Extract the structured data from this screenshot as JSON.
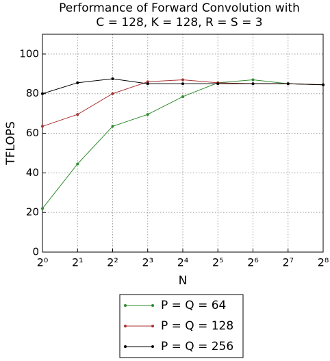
{
  "chart_data": {
    "type": "line",
    "title": [
      "Performance of Forward Convolution with",
      "C = 128, K = 128, R = S = 3"
    ],
    "x_label": "N",
    "y_label": "TFLOPS",
    "x": [
      1,
      2,
      4,
      8,
      16,
      32,
      64,
      128,
      256
    ],
    "xscale": "log2",
    "xlim": [
      1,
      256
    ],
    "xticks": [
      {
        "value": 1,
        "label": "2⁰"
      },
      {
        "value": 2,
        "label": "2¹"
      },
      {
        "value": 4,
        "label": "2²"
      },
      {
        "value": 8,
        "label": "2³"
      },
      {
        "value": 16,
        "label": "2⁴"
      },
      {
        "value": 32,
        "label": "2⁵"
      },
      {
        "value": 64,
        "label": "2⁶"
      },
      {
        "value": 128,
        "label": "2⁷"
      },
      {
        "value": 256,
        "label": "2⁸"
      }
    ],
    "ylim": [
      0,
      110
    ],
    "yticks": [
      0,
      20,
      40,
      60,
      80,
      100
    ],
    "grid": true,
    "legend": "below",
    "series": [
      {
        "name": "P = Q = 64",
        "color": "#2e8b2e",
        "values": [
          22,
          44.5,
          63.5,
          69.5,
          78.5,
          85.5,
          87,
          85,
          84.5
        ]
      },
      {
        "name": "P = Q = 128",
        "color": "#a83232",
        "values": [
          63.5,
          69.5,
          80,
          86,
          87,
          85.5,
          85,
          85,
          84.5
        ]
      },
      {
        "name": "P = Q = 256",
        "color": "#000000",
        "values": [
          80,
          85.5,
          87.5,
          85,
          85,
          85,
          85,
          85,
          84.5
        ]
      }
    ]
  }
}
